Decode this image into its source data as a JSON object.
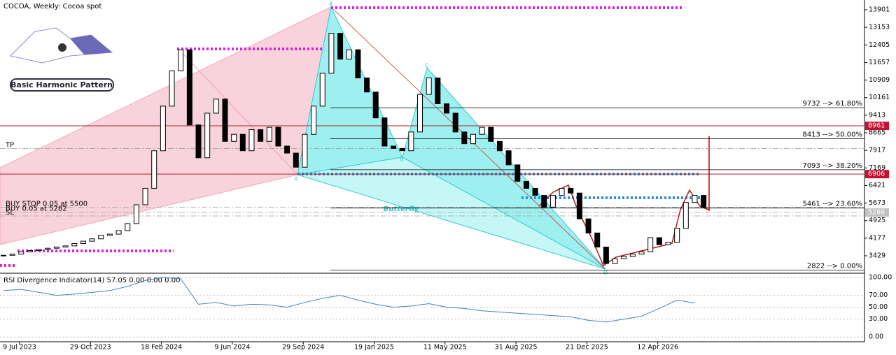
{
  "chart_data": {
    "type": "candlestick",
    "title": "COCOA, Weekly:  Cocoa spot",
    "logo_text": "Basic Harmonic Pattern",
    "pattern_name": "Butterfly",
    "pattern_points": [
      "X",
      "A",
      "B",
      "C",
      "D"
    ],
    "categories": [
      "9 Jul 2023",
      "29 Oct 2023",
      "18 Feb 2024",
      "9 Jun 2024",
      "29 Sep 2024",
      "19 Jan 2025",
      "11 May 2025",
      "31 Aug 2025",
      "21 Dec 2025",
      "12 Apr 2026"
    ],
    "closes": [
      3450,
      3500,
      3600,
      3650,
      3700,
      3750,
      3800,
      3850,
      3950,
      4050,
      4150,
      4300,
      4350,
      4500,
      4800,
      5600,
      6300,
      7900,
      9800,
      11300,
      12200,
      9000,
      7600,
      9500,
      10100,
      8300,
      8600,
      7900,
      8800,
      8300,
      8900,
      8100,
      7800,
      7200,
      8600,
      9800,
      11200,
      12900,
      11800,
      12200,
      11000,
      10400,
      9300,
      8100,
      8000,
      7900,
      8700,
      10300,
      11000,
      9900,
      9500,
      8700,
      8200,
      8600,
      8900,
      8300,
      7900,
      7300,
      6600,
      6300,
      6000,
      5500,
      6000,
      6300,
      6100,
      5000,
      4400,
      3800,
      3100,
      3300,
      3400,
      3500,
      3600,
      4200,
      3900,
      4000,
      4600,
      5700,
      6000,
      5500
    ],
    "up_color": "#ffffff",
    "down_color": "#000000",
    "ylim": [
      2715,
      14318
    ],
    "yticks": [
      13901,
      13153,
      12405,
      11657,
      10909,
      10161,
      9413,
      8665,
      7917,
      7169,
      6421,
      5673,
      4925,
      4177,
      3429
    ],
    "marked_levels": [
      8961,
      6906
    ],
    "current_price": 5268,
    "fib_levels": [
      {
        "value": 9732,
        "label": "9732 --> 61.80%"
      },
      {
        "value": 8413,
        "label": "8413 --> 50.00%"
      },
      {
        "value": 7093,
        "label": "7093 --> 38.20%"
      },
      {
        "value": 5461,
        "label": "5461 --> 23.60%"
      },
      {
        "value": 2822,
        "label": "2822 --> 0.00%"
      }
    ],
    "orders": [
      {
        "value": 8000,
        "label": "TP"
      },
      {
        "value": 5500,
        "label": "BUY STOP 0.05 at 5500"
      },
      {
        "value": 5282,
        "label": "BUY 0.05 at 5282"
      },
      {
        "value": 5125,
        "label": "SL"
      }
    ],
    "rsi": {
      "title": "RSI Divergence Indicator(14) 57.05 0.00 0.00 0.00",
      "color": "#4a7fb5",
      "values": [
        78,
        80,
        75,
        70,
        72,
        75,
        78,
        85,
        95,
        100,
        98,
        55,
        58,
        52,
        55,
        54,
        50,
        58,
        65,
        70,
        62,
        55,
        50,
        52,
        56,
        50,
        48,
        44,
        42,
        40,
        38,
        36,
        34,
        28,
        25,
        30,
        35,
        48,
        62,
        57
      ],
      "ylim": [
        -8,
        106
      ],
      "yticks": [
        {
          "value": 100,
          "label": "100.00"
        },
        {
          "value": 70,
          "label": "70.00"
        },
        {
          "value": 50,
          "label": "50.00"
        },
        {
          "value": 30,
          "label": "30.00"
        },
        {
          "value": 0,
          "label": "0.00"
        }
      ]
    }
  }
}
